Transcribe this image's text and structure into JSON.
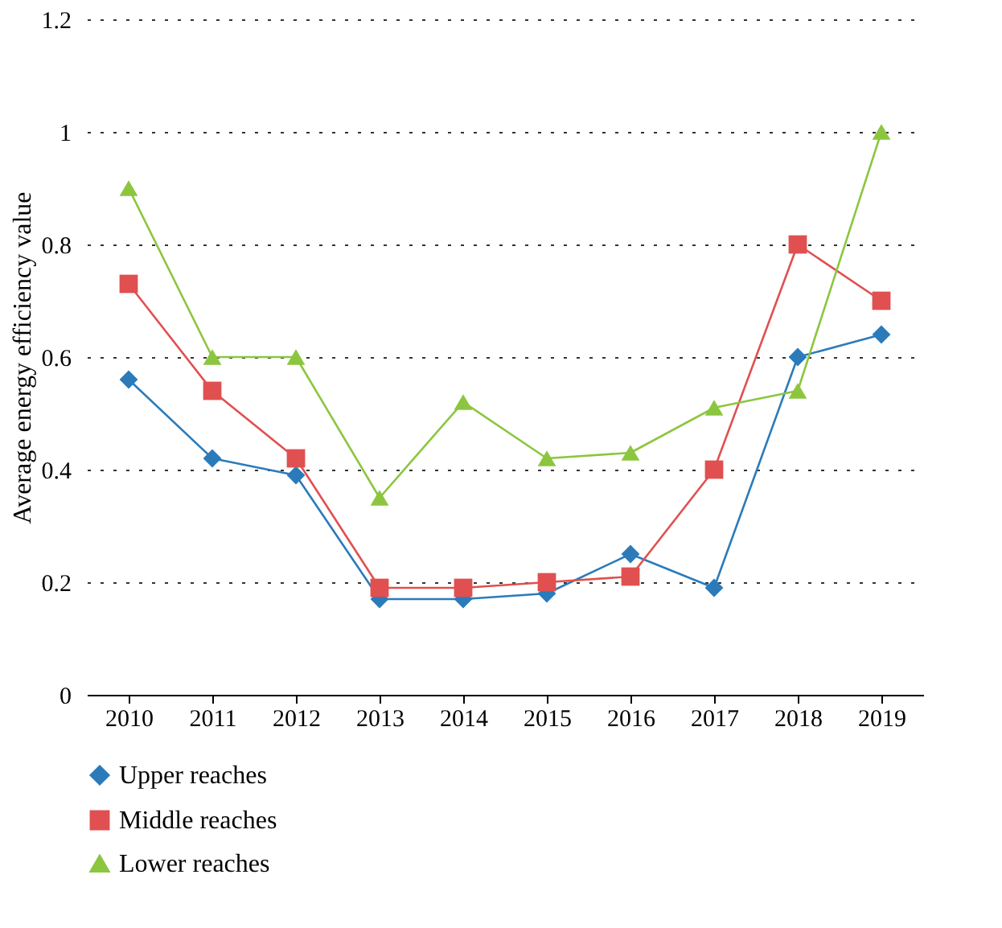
{
  "chart_data": {
    "type": "line",
    "ylabel": "Average energy efficiency value",
    "categories": [
      "2010",
      "2011",
      "2012",
      "2013",
      "2014",
      "2015",
      "2016",
      "2017",
      "2018",
      "2019"
    ],
    "series": [
      {
        "name": "Upper reaches",
        "color": "#2b7bba",
        "marker": "diamond",
        "values": [
          0.56,
          0.42,
          0.39,
          0.17,
          0.17,
          0.18,
          0.25,
          0.19,
          0.6,
          0.64
        ]
      },
      {
        "name": "Middle reaches",
        "color": "#e05050",
        "marker": "square",
        "values": [
          0.73,
          0.54,
          0.42,
          0.19,
          0.19,
          0.2,
          0.21,
          0.4,
          0.8,
          0.7
        ]
      },
      {
        "name": "Lower reaches",
        "color": "#8cc63f",
        "marker": "triangle",
        "values": [
          0.9,
          0.6,
          0.6,
          0.35,
          0.52,
          0.42,
          0.43,
          0.51,
          0.54,
          1.0
        ]
      }
    ],
    "ylim": [
      0,
      1.2
    ],
    "yticks": [
      0,
      0.2,
      0.4,
      0.6,
      0.8,
      1,
      1.2
    ],
    "grid": "y",
    "legend": "bottom",
    "line_style": "solid"
  }
}
